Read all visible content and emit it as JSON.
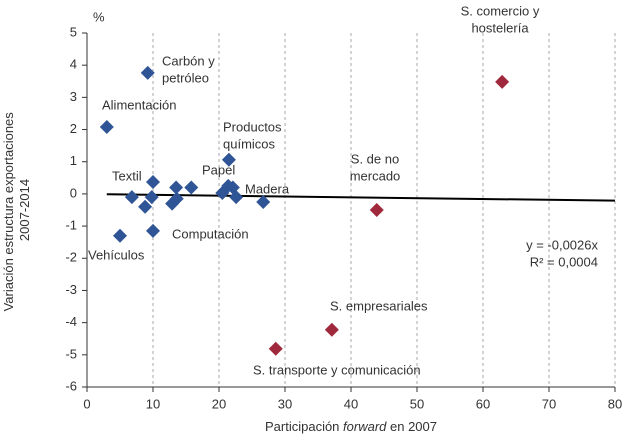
{
  "chart_data": {
    "type": "scatter",
    "unit": "%",
    "y_label": [
      "Variación estructura exportaciones",
      "2007-2014"
    ],
    "x_label": [
      "Participación ",
      "forward",
      " en 2007"
    ],
    "xlim": [
      0,
      80
    ],
    "xticks": [
      0,
      10,
      20,
      30,
      40,
      50,
      60,
      70,
      80
    ],
    "ylim": [
      -6,
      5
    ],
    "yticks": [
      -6,
      -5,
      -4,
      -3,
      -2,
      -1,
      0,
      1,
      2,
      3,
      4,
      5
    ],
    "grid": true,
    "series": [
      {
        "color": "#2f5597",
        "x": [
          3,
          9.2,
          21.5,
          10,
          6.8,
          8.8,
          9.8,
          12.9,
          13.6,
          13.5,
          15.8,
          20.5,
          21.4,
          22.1,
          22.6,
          26.7,
          5,
          10
        ],
        "values": [
          2.08,
          3.76,
          1.06,
          0.37,
          -0.1,
          -0.4,
          -0.1,
          -0.3,
          -0.15,
          0.2,
          0.2,
          0.03,
          0.25,
          0.2,
          -0.1,
          -0.25,
          -1.3,
          -1.15
        ]
      },
      {
        "color": "#a0283c",
        "x": [
          62.9,
          43.9,
          37.1,
          28.6
        ],
        "values": [
          3.48,
          -0.5,
          -4.22,
          -4.81
        ]
      }
    ],
    "trendline": {
      "color": "#000000",
      "x": [
        3,
        80
      ],
      "values": [
        -0.01,
        -0.21
      ]
    },
    "annotations": [
      {
        "lines": [
          "Carbón y",
          "petróleo"
        ]
      },
      {
        "lines": [
          "Alimentación"
        ]
      },
      {
        "lines": [
          "Productos",
          "químicos"
        ]
      },
      {
        "lines": [
          "Textil"
        ]
      },
      {
        "lines": [
          "Papel"
        ]
      },
      {
        "lines": [
          "Madera"
        ]
      },
      {
        "lines": [
          "Computación"
        ]
      },
      {
        "lines": [
          "Vehículos"
        ]
      },
      {
        "lines": [
          "S. de no",
          "mercado"
        ]
      },
      {
        "lines": [
          "S. comercio y",
          "hostelería"
        ]
      },
      {
        "lines": [
          "S. empresariales"
        ]
      },
      {
        "lines": [
          "S. transporte y comunicación"
        ]
      },
      {
        "lines": [
          "y = -0,0026x",
          "R² = 0,0004"
        ]
      }
    ]
  }
}
